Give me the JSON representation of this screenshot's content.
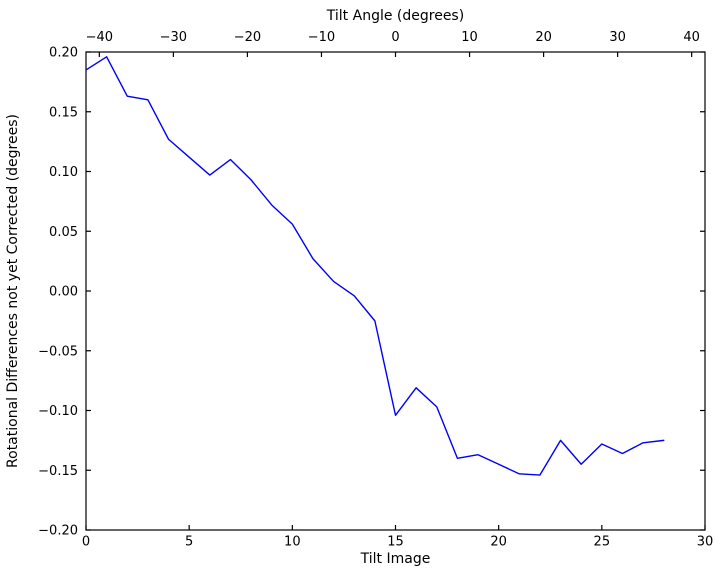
{
  "figure": {
    "background_color": "#ffffff",
    "spine_color": "#000000",
    "text_color": "#000000"
  },
  "chart_data": {
    "type": "line",
    "title": "",
    "top_xlabel": "Tilt Angle (degrees)",
    "xlabel": "Tilt Image",
    "ylabel": "Rotational Differences not yet Corrected (degrees)",
    "xlim": [
      0,
      30
    ],
    "ylim": [
      -0.2,
      0.2
    ],
    "top_xlim": [
      -41.8,
      41.8
    ],
    "grid": false,
    "legend": "none",
    "x_ticks": {
      "values": [
        0,
        5,
        10,
        15,
        20,
        25,
        30
      ],
      "labels": [
        "0",
        "5",
        "10",
        "15",
        "20",
        "25",
        "30"
      ]
    },
    "y_ticks": {
      "values": [
        0.2,
        0.15,
        0.1,
        0.05,
        0.0,
        -0.05,
        -0.1,
        -0.15,
        -0.2
      ],
      "labels": [
        "0.20",
        "0.15",
        "0.10",
        "0.05",
        "0.00",
        "−0.05",
        "−0.10",
        "−0.15",
        "−0.20"
      ]
    },
    "top_x_ticks": {
      "values": [
        -40,
        -30,
        -20,
        -10,
        0,
        10,
        20,
        30,
        40
      ],
      "labels": [
        "−40",
        "−30",
        "−20",
        "−10",
        "0",
        "10",
        "20",
        "30",
        "40"
      ]
    },
    "series": [
      {
        "name": "rotational-differences",
        "color": "#0000ff",
        "x": [
          0,
          1,
          2,
          3,
          4,
          5,
          6,
          7,
          8,
          9,
          10,
          11,
          12,
          13,
          14,
          15,
          16,
          17,
          18,
          19,
          20,
          21,
          22,
          23,
          24,
          25,
          26,
          27,
          28
        ],
        "y": [
          0.185,
          0.196,
          0.163,
          0.16,
          0.127,
          0.112,
          0.097,
          0.11,
          0.093,
          0.072,
          0.056,
          0.027,
          0.008,
          -0.004,
          -0.025,
          -0.104,
          -0.081,
          -0.097,
          -0.14,
          -0.137,
          -0.145,
          -0.153,
          -0.154,
          -0.125,
          -0.145,
          -0.128,
          -0.136,
          -0.127,
          -0.125
        ]
      }
    ]
  }
}
